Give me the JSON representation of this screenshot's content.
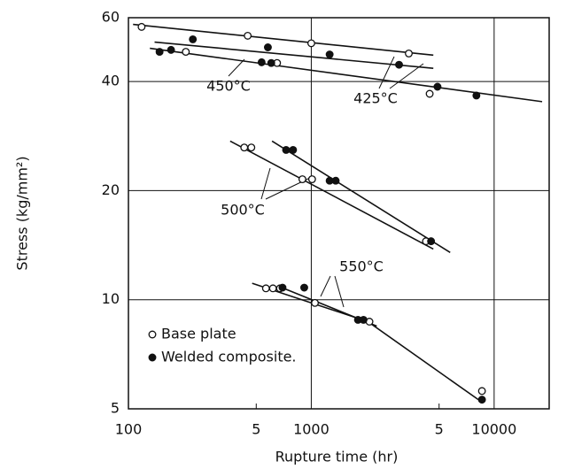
{
  "chart_data": {
    "type": "scatter",
    "y_label": "Stress (kg/mm²)",
    "x_label": "Rupture time (hr)",
    "log_x": true,
    "log_y": true,
    "grid": true,
    "xlim": [
      100,
      20000
    ],
    "xticks": [
      100,
      {
        "value": 500,
        "label": "5"
      },
      1000,
      {
        "value": 5000,
        "label": "5"
      },
      10000
    ],
    "ylim": [
      5,
      60
    ],
    "yticks": [
      5,
      10,
      20,
      40,
      60
    ],
    "legend_position": "lower left",
    "series": [
      {
        "name": "Base plate",
        "marker": "open",
        "color": "#111111",
        "x": [
          118,
          449,
          1000,
          3414,
          206,
          650,
          4440,
          430,
          470,
          894,
          1010,
          4240,
          565,
          617,
          674,
          1047,
          2080,
          8580
        ],
        "values": [
          56.6,
          53.5,
          51,
          47.8,
          48.3,
          45,
          37,
          26.3,
          26.3,
          21.5,
          21.5,
          14.5,
          10.75,
          10.75,
          10.75,
          9.8,
          8.7,
          5.6
        ]
      },
      {
        "name": "Welded composite.",
        "marker": "filled",
        "color": "#111111",
        "x": [
          225,
          579,
          1260,
          3020,
          148,
          171,
          535,
          604,
          4900,
          8000,
          728,
          795,
          1260,
          1360,
          4520,
          696,
          915,
          1800,
          1930,
          8580
        ],
        "values": [
          52.3,
          49.7,
          47.5,
          44.5,
          48.3,
          48.9,
          45.2,
          45,
          38.7,
          36.6,
          25.9,
          25.9,
          21.3,
          21.3,
          14.5,
          10.8,
          10.8,
          8.8,
          8.8,
          5.3
        ]
      }
    ],
    "fit_lines": [
      {
        "x": [
          106,
          4650
        ],
        "values": [
          57.5,
          47.3
        ]
      },
      {
        "x": [
          139,
          4650
        ],
        "values": [
          51.4,
          43.5
        ]
      },
      {
        "x": [
          131,
          18300
        ],
        "values": [
          49.4,
          35.2
        ]
      },
      {
        "x": [
          360,
          4650
        ],
        "values": [
          27.4,
          13.8
        ]
      },
      {
        "x": [
          610,
          5750
        ],
        "values": [
          27.4,
          13.5
        ]
      },
      {
        "x": [
          475,
          2040,
          8650
        ],
        "values": [
          11.1,
          8.7,
          5.2
        ]
      },
      {
        "x": [
          660,
          2280
        ],
        "values": [
          10.9,
          8.46
        ]
      }
    ],
    "annotations": [
      "450°C",
      "425°C",
      "500°C",
      "550°C"
    ]
  }
}
